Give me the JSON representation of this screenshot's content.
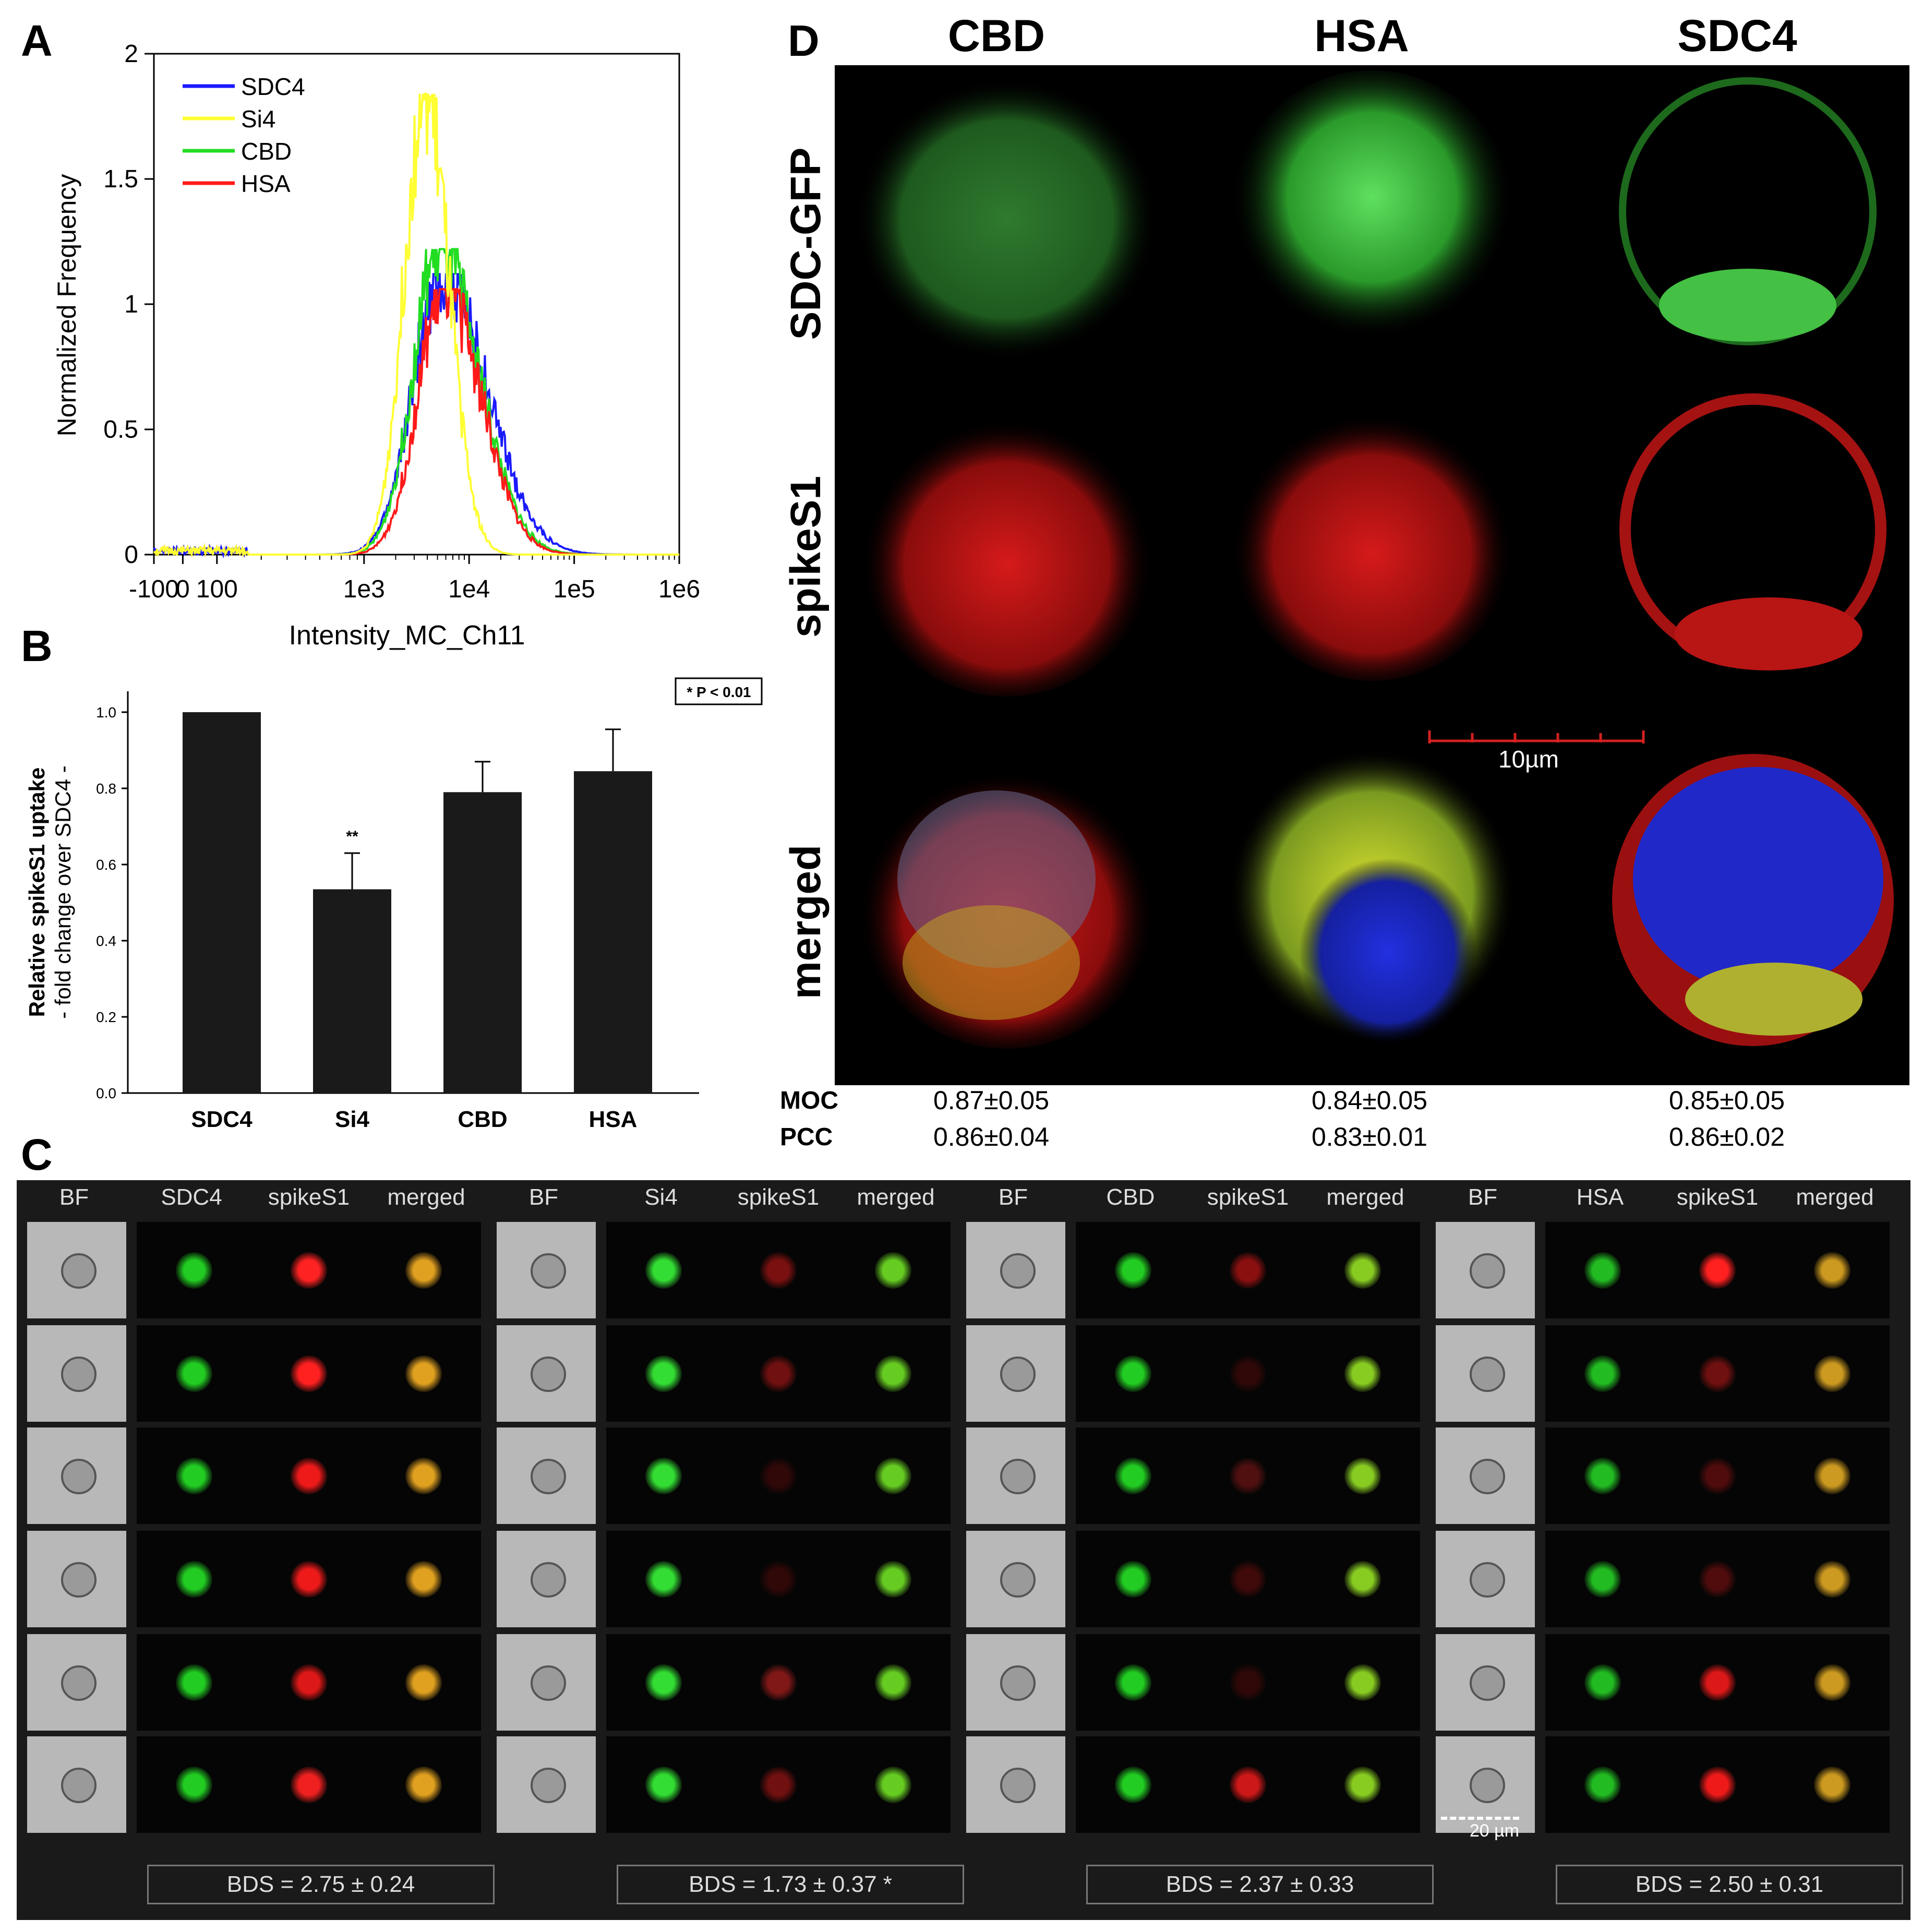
{
  "panels": {
    "A": "A",
    "B": "B",
    "C": "C",
    "D": "D"
  },
  "panelA": {
    "chart_data": {
      "type": "line",
      "xlabel": "Intensity_MC_Ch11",
      "ylabel": "Normalized Frequency",
      "x_ticks": [
        "-100",
        "0",
        "100",
        "1e3",
        "1e4",
        "1e5",
        "1e6"
      ],
      "y_ticks": [
        "0",
        "0.5",
        "1",
        "1.5",
        "2"
      ],
      "ylim": [
        0,
        2
      ],
      "x_scale": "logicle",
      "legend_position": "top-left",
      "series": [
        {
          "name": "SDC4",
          "color": "#1a1aff",
          "peak_x": 5500,
          "peak_y": 1.12
        },
        {
          "name": "Si4",
          "color": "#ffff33",
          "peak_x": 3800,
          "peak_y": 1.84
        },
        {
          "name": "CBD",
          "color": "#22dd22",
          "peak_x": 5200,
          "peak_y": 1.22
        },
        {
          "name": "HSA",
          "color": "#ff1a1a",
          "peak_x": 5800,
          "peak_y": 1.06
        }
      ]
    }
  },
  "panelB": {
    "chart_data": {
      "type": "bar",
      "categories": [
        "SDC4",
        "Si4",
        "CBD",
        "HSA"
      ],
      "values": [
        1.0,
        0.535,
        0.79,
        0.845
      ],
      "errors": [
        0,
        0.095,
        0.08,
        0.11
      ],
      "ylabel": "Relative spikeS1 uptake",
      "ylabel2": "- fold change over SDC4 -",
      "ylim": [
        0,
        1.0
      ],
      "y_ticks": [
        "0.0",
        "0.2",
        "0.4",
        "0.6",
        "0.8",
        "1.0"
      ],
      "annotations": [
        "**"
      ],
      "legend": "* P < 0.01"
    }
  },
  "panelD": {
    "columns": [
      "CBD",
      "HSA",
      "SDC4"
    ],
    "rows": [
      "SDC-GFP",
      "spikeS1",
      "merged"
    ],
    "scale_bar": "10µm",
    "stats": {
      "labels": [
        "MOC",
        "PCC"
      ],
      "MOC": [
        "0.87±0.05",
        "0.84±0.05",
        "0.85±0.05"
      ],
      "PCC": [
        "0.86±0.04",
        "0.83±0.01",
        "0.86±0.02"
      ]
    }
  },
  "panelC": {
    "groups": [
      {
        "headers": [
          "BF",
          "SDC4",
          "spikeS1",
          "merged"
        ],
        "bds": "BDS = 2.75 ± 0.24"
      },
      {
        "headers": [
          "BF",
          "Si4",
          "spikeS1",
          "merged"
        ],
        "bds": "BDS = 1.73 ± 0.37 *"
      },
      {
        "headers": [
          "BF",
          "CBD",
          "spikeS1",
          "merged"
        ],
        "bds": "BDS = 2.37 ± 0.33"
      },
      {
        "headers": [
          "BF",
          "HSA",
          "spikeS1",
          "merged"
        ],
        "bds": "BDS = 2.50 ± 0.31"
      }
    ],
    "scale_bar": "20 µm"
  }
}
